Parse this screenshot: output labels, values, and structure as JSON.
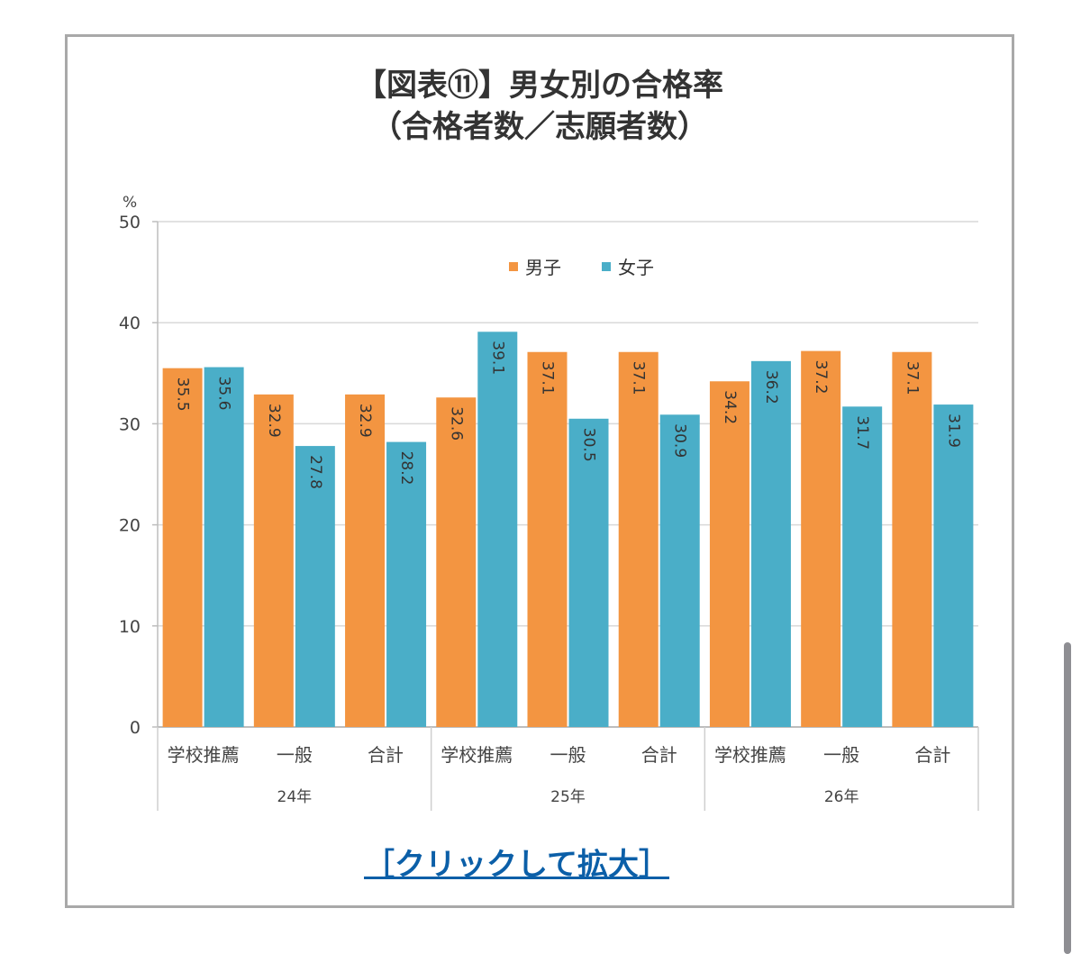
{
  "title_line1": "【図表⑪】男女別の合格率",
  "title_line2": "（合格者数／志願者数）",
  "link_text": "［クリックして拡大］",
  "chart_data": {
    "type": "bar",
    "unit_label": "%",
    "ylim": [
      0,
      50
    ],
    "yticks": [
      0,
      10,
      20,
      30,
      40,
      50
    ],
    "grid": true,
    "legend_position": "top",
    "categories": [
      "学校推薦",
      "一般",
      "合計",
      "学校推薦",
      "一般",
      "合計",
      "学校推薦",
      "一般",
      "合計"
    ],
    "groups": [
      "24年",
      "25年",
      "26年"
    ],
    "group_size": 3,
    "series": [
      {
        "name": "男子",
        "color": "#f39541",
        "values": [
          35.5,
          32.9,
          32.9,
          32.6,
          37.1,
          37.1,
          34.2,
          37.2,
          37.1
        ]
      },
      {
        "name": "女子",
        "color": "#4aaec8",
        "values": [
          35.6,
          27.8,
          28.2,
          39.1,
          30.5,
          30.9,
          36.2,
          31.7,
          31.9
        ]
      }
    ]
  }
}
